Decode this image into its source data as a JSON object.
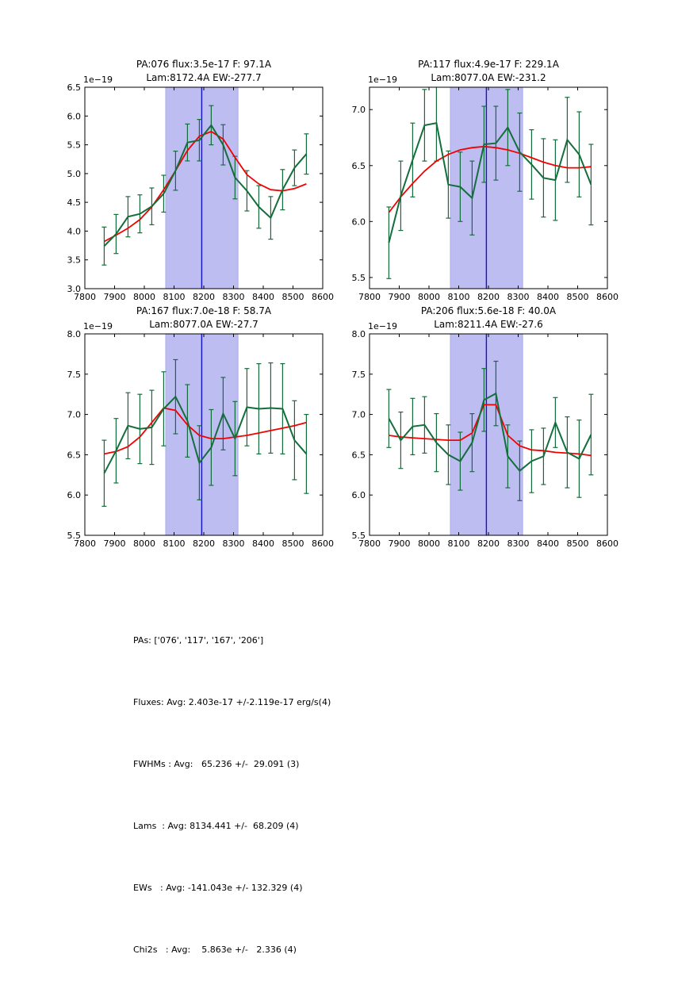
{
  "figure": {
    "colors": {
      "data_line": "#146e3c",
      "fit_line": "#f40000",
      "band": "#bdbdf2",
      "band_edge": "#aaaae8",
      "center_line": "#1414cc",
      "axis": "#000000"
    }
  },
  "chart_data": [
    {
      "type": "line",
      "id": "pa-076",
      "title": "PA:076 flux:3.5e-17 F: 97.1A",
      "subtitle": "Lam:8172.4A EW:-277.7",
      "offset_label": "1e−19",
      "xlabel": "",
      "ylabel": "",
      "xlim": [
        7800,
        8600
      ],
      "ylim": [
        3.0,
        6.5
      ],
      "xticks": [
        7800,
        7900,
        8000,
        8100,
        8200,
        8300,
        8400,
        8500,
        8600
      ],
      "yticks": [
        3.0,
        3.5,
        4.0,
        4.5,
        5.0,
        5.5,
        6.0,
        6.5
      ],
      "band": [
        8072,
        8315
      ],
      "vline": 8193,
      "x": [
        7865,
        7905,
        7945,
        7985,
        8025,
        8065,
        8105,
        8145,
        8185,
        8225,
        8265,
        8305,
        8345,
        8385,
        8425,
        8465,
        8505,
        8545
      ],
      "series": [
        {
          "name": "spectrum-with-errorbars",
          "values": [
            3.74,
            3.95,
            4.25,
            4.3,
            4.43,
            4.65,
            5.05,
            5.54,
            5.58,
            5.84,
            5.5,
            4.93,
            4.7,
            4.42,
            4.23,
            4.72,
            5.1,
            5.34
          ],
          "errors": [
            0.33,
            0.34,
            0.35,
            0.33,
            0.32,
            0.32,
            0.34,
            0.32,
            0.36,
            0.34,
            0.35,
            0.37,
            0.35,
            0.37,
            0.37,
            0.35,
            0.31,
            0.35
          ]
        },
        {
          "name": "gaussian-fit",
          "values": [
            3.82,
            3.93,
            4.05,
            4.2,
            4.42,
            4.72,
            5.05,
            5.4,
            5.65,
            5.73,
            5.6,
            5.28,
            4.98,
            4.82,
            4.72,
            4.7,
            4.74,
            4.82
          ]
        }
      ]
    },
    {
      "type": "line",
      "id": "pa-117",
      "title": "PA:117 flux:4.9e-17 F: 229.1A",
      "subtitle": "Lam:8077.0A EW:-231.2",
      "offset_label": "1e−19",
      "xlabel": "",
      "ylabel": "",
      "xlim": [
        7800,
        8600
      ],
      "ylim": [
        5.4,
        7.2
      ],
      "xticks": [
        7800,
        7900,
        8000,
        8100,
        8200,
        8300,
        8400,
        8500,
        8600
      ],
      "yticks": [
        5.5,
        6.0,
        6.5,
        7.0
      ],
      "band": [
        8072,
        8315
      ],
      "vline": 8193,
      "x": [
        7865,
        7905,
        7945,
        7985,
        8025,
        8065,
        8105,
        8145,
        8185,
        8225,
        8265,
        8305,
        8345,
        8385,
        8425,
        8465,
        8505,
        8545
      ],
      "series": [
        {
          "name": "spectrum-with-errorbars",
          "values": [
            5.81,
            6.23,
            6.55,
            6.86,
            6.88,
            6.33,
            6.31,
            6.21,
            6.69,
            6.7,
            6.84,
            6.62,
            6.51,
            6.39,
            6.37,
            6.73,
            6.6,
            6.33
          ],
          "errors": [
            0.32,
            0.31,
            0.33,
            0.32,
            0.34,
            0.3,
            0.31,
            0.33,
            0.34,
            0.33,
            0.34,
            0.35,
            0.31,
            0.35,
            0.36,
            0.38,
            0.38,
            0.36
          ]
        },
        {
          "name": "gaussian-fit",
          "values": [
            6.08,
            6.22,
            6.34,
            6.45,
            6.54,
            6.6,
            6.64,
            6.66,
            6.67,
            6.66,
            6.64,
            6.61,
            6.57,
            6.53,
            6.5,
            6.48,
            6.48,
            6.49
          ]
        }
      ]
    },
    {
      "type": "line",
      "id": "pa-167",
      "title": "PA:167 flux:7.0e-18 F: 58.7A",
      "subtitle": "Lam:8077.0A EW:-27.7",
      "offset_label": "1e−19",
      "xlabel": "",
      "ylabel": "",
      "xlim": [
        7800,
        8600
      ],
      "ylim": [
        5.5,
        8.0
      ],
      "xticks": [
        7800,
        7900,
        8000,
        8100,
        8200,
        8300,
        8400,
        8500,
        8600
      ],
      "yticks": [
        5.5,
        6.0,
        6.5,
        7.0,
        7.5,
        8.0
      ],
      "band": [
        8072,
        8315
      ],
      "vline": 8193,
      "x": [
        7865,
        7905,
        7945,
        7985,
        8025,
        8065,
        8105,
        8145,
        8185,
        8225,
        8265,
        8305,
        8345,
        8385,
        8425,
        8465,
        8505,
        8545
      ],
      "series": [
        {
          "name": "spectrum-with-errorbars",
          "values": [
            6.27,
            6.55,
            6.86,
            6.82,
            6.84,
            7.07,
            7.22,
            6.92,
            6.4,
            6.59,
            7.01,
            6.7,
            7.09,
            7.07,
            7.08,
            7.07,
            6.68,
            6.51
          ],
          "errors": [
            0.41,
            0.4,
            0.41,
            0.43,
            0.46,
            0.46,
            0.46,
            0.45,
            0.46,
            0.47,
            0.45,
            0.46,
            0.48,
            0.56,
            0.56,
            0.56,
            0.49,
            0.49
          ]
        },
        {
          "name": "gaussian-fit",
          "values": [
            6.51,
            6.54,
            6.6,
            6.72,
            6.9,
            7.08,
            7.05,
            6.87,
            6.74,
            6.7,
            6.7,
            6.72,
            6.74,
            6.77,
            6.8,
            6.83,
            6.86,
            6.9
          ]
        }
      ]
    },
    {
      "type": "line",
      "id": "pa-206",
      "title": "PA:206 flux:5.6e-18 F: 40.0A",
      "subtitle": "Lam:8211.4A EW:-27.6",
      "offset_label": "1e−19",
      "xlabel": "",
      "ylabel": "",
      "xlim": [
        7800,
        8600
      ],
      "ylim": [
        5.5,
        8.0
      ],
      "xticks": [
        7800,
        7900,
        8000,
        8100,
        8200,
        8300,
        8400,
        8500,
        8600
      ],
      "yticks": [
        5.5,
        6.0,
        6.5,
        7.0,
        7.5,
        8.0
      ],
      "band": [
        8072,
        8315
      ],
      "vline": 8193,
      "x": [
        7865,
        7905,
        7945,
        7985,
        8025,
        8065,
        8105,
        8145,
        8185,
        8225,
        8265,
        8305,
        8345,
        8385,
        8425,
        8465,
        8505,
        8545
      ],
      "series": [
        {
          "name": "spectrum-with-errorbars",
          "values": [
            6.95,
            6.68,
            6.85,
            6.87,
            6.65,
            6.5,
            6.42,
            6.65,
            7.18,
            7.26,
            6.48,
            6.3,
            6.42,
            6.48,
            6.9,
            6.53,
            6.45,
            6.75
          ],
          "errors": [
            0.36,
            0.35,
            0.35,
            0.35,
            0.36,
            0.37,
            0.36,
            0.36,
            0.39,
            0.4,
            0.39,
            0.37,
            0.39,
            0.35,
            0.31,
            0.44,
            0.48,
            0.5
          ]
        },
        {
          "name": "gaussian-fit",
          "values": [
            6.74,
            6.72,
            6.71,
            6.7,
            6.69,
            6.68,
            6.68,
            6.77,
            7.12,
            7.12,
            6.74,
            6.61,
            6.56,
            6.55,
            6.53,
            6.52,
            6.51,
            6.49
          ]
        }
      ]
    }
  ],
  "summary": {
    "lines": [
      "PAs: ['076', '117', '167', '206']",
      "Fluxes: Avg: 2.403e-17 +/-2.119e-17 erg/s(4)",
      "FWHMs : Avg:   65.236 +/-  29.091 (3)",
      "Lams  : Avg: 8134.441 +/-  68.209 (4)",
      "EWs   : Avg: -141.043e +/- 132.329 (4)",
      "Chi2s   : Avg:    5.863e +/-   2.336 (4)"
    ]
  }
}
